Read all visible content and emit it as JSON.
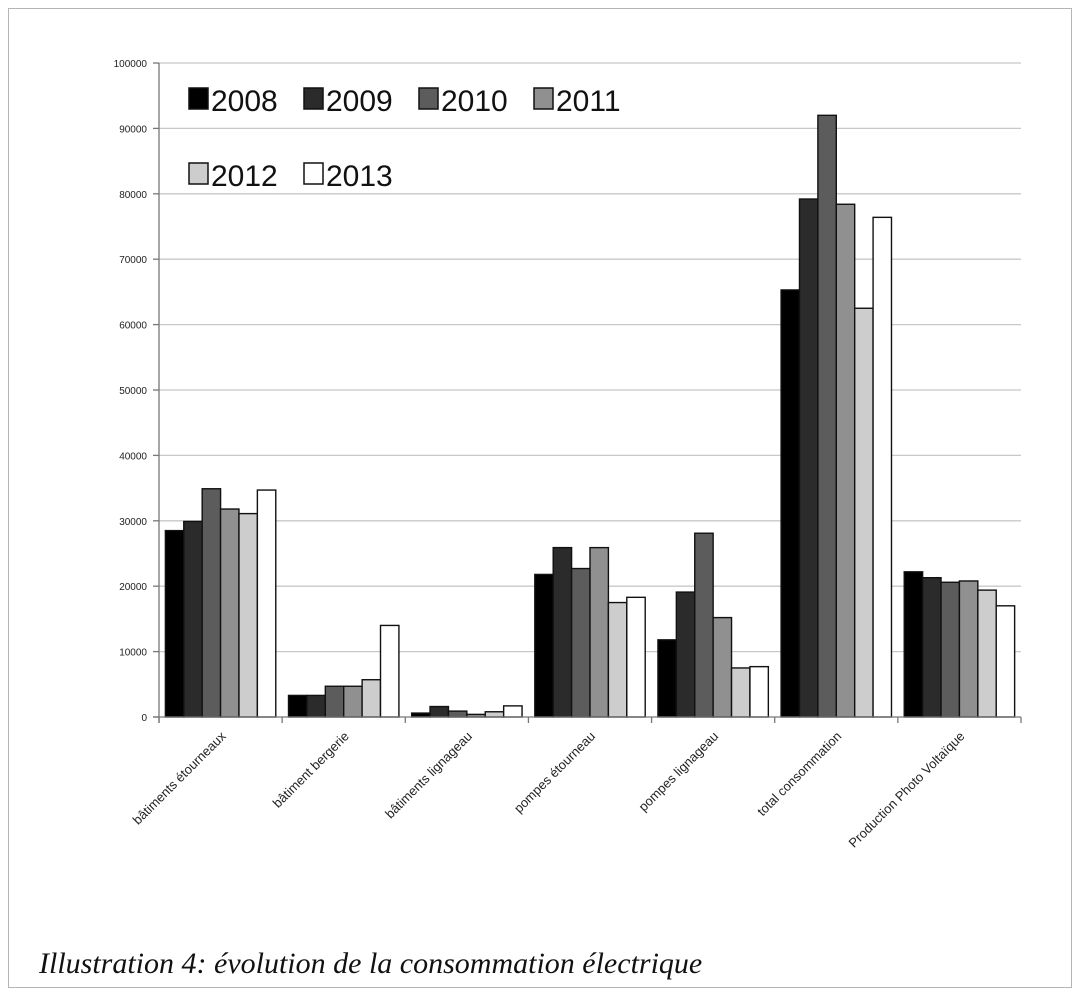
{
  "chart_data": {
    "type": "bar",
    "categories": [
      "bâtiments étourneaux",
      "bâtiment bergerie",
      "bâtiments lignageau",
      "pompes étourneau",
      "pompes lignageau",
      "total consommation",
      "Production Photo Voltaïque"
    ],
    "series": [
      {
        "name": "2008",
        "color": "#000000",
        "values": [
          28500,
          3300,
          600,
          21800,
          11800,
          65300,
          22200
        ]
      },
      {
        "name": "2009",
        "color": "#2b2b2b",
        "values": [
          29900,
          3300,
          1600,
          25900,
          19100,
          79200,
          21300
        ]
      },
      {
        "name": "2010",
        "color": "#5c5c5c",
        "values": [
          34900,
          4700,
          900,
          22700,
          28100,
          92000,
          20600
        ]
      },
      {
        "name": "2011",
        "color": "#909090",
        "values": [
          31800,
          4700,
          400,
          25900,
          15200,
          78400,
          20800
        ]
      },
      {
        "name": "2012",
        "color": "#cdcdcd",
        "values": [
          31100,
          5700,
          800,
          17500,
          7500,
          62500,
          19400
        ]
      },
      {
        "name": "2013",
        "color": "#ffffff",
        "values": [
          34700,
          14000,
          1700,
          18300,
          7700,
          76400,
          17000
        ]
      }
    ],
    "yticks": [
      "0",
      "10000",
      "20000",
      "30000",
      "40000",
      "50000",
      "60000",
      "70000",
      "80000",
      "90000",
      "100000"
    ],
    "ylim": [
      0,
      100000
    ],
    "grid": true,
    "legend_position": "top-left",
    "title": "",
    "xlabel": "",
    "ylabel": ""
  },
  "caption": "Illustration 4: évolution de la consommation électrique"
}
